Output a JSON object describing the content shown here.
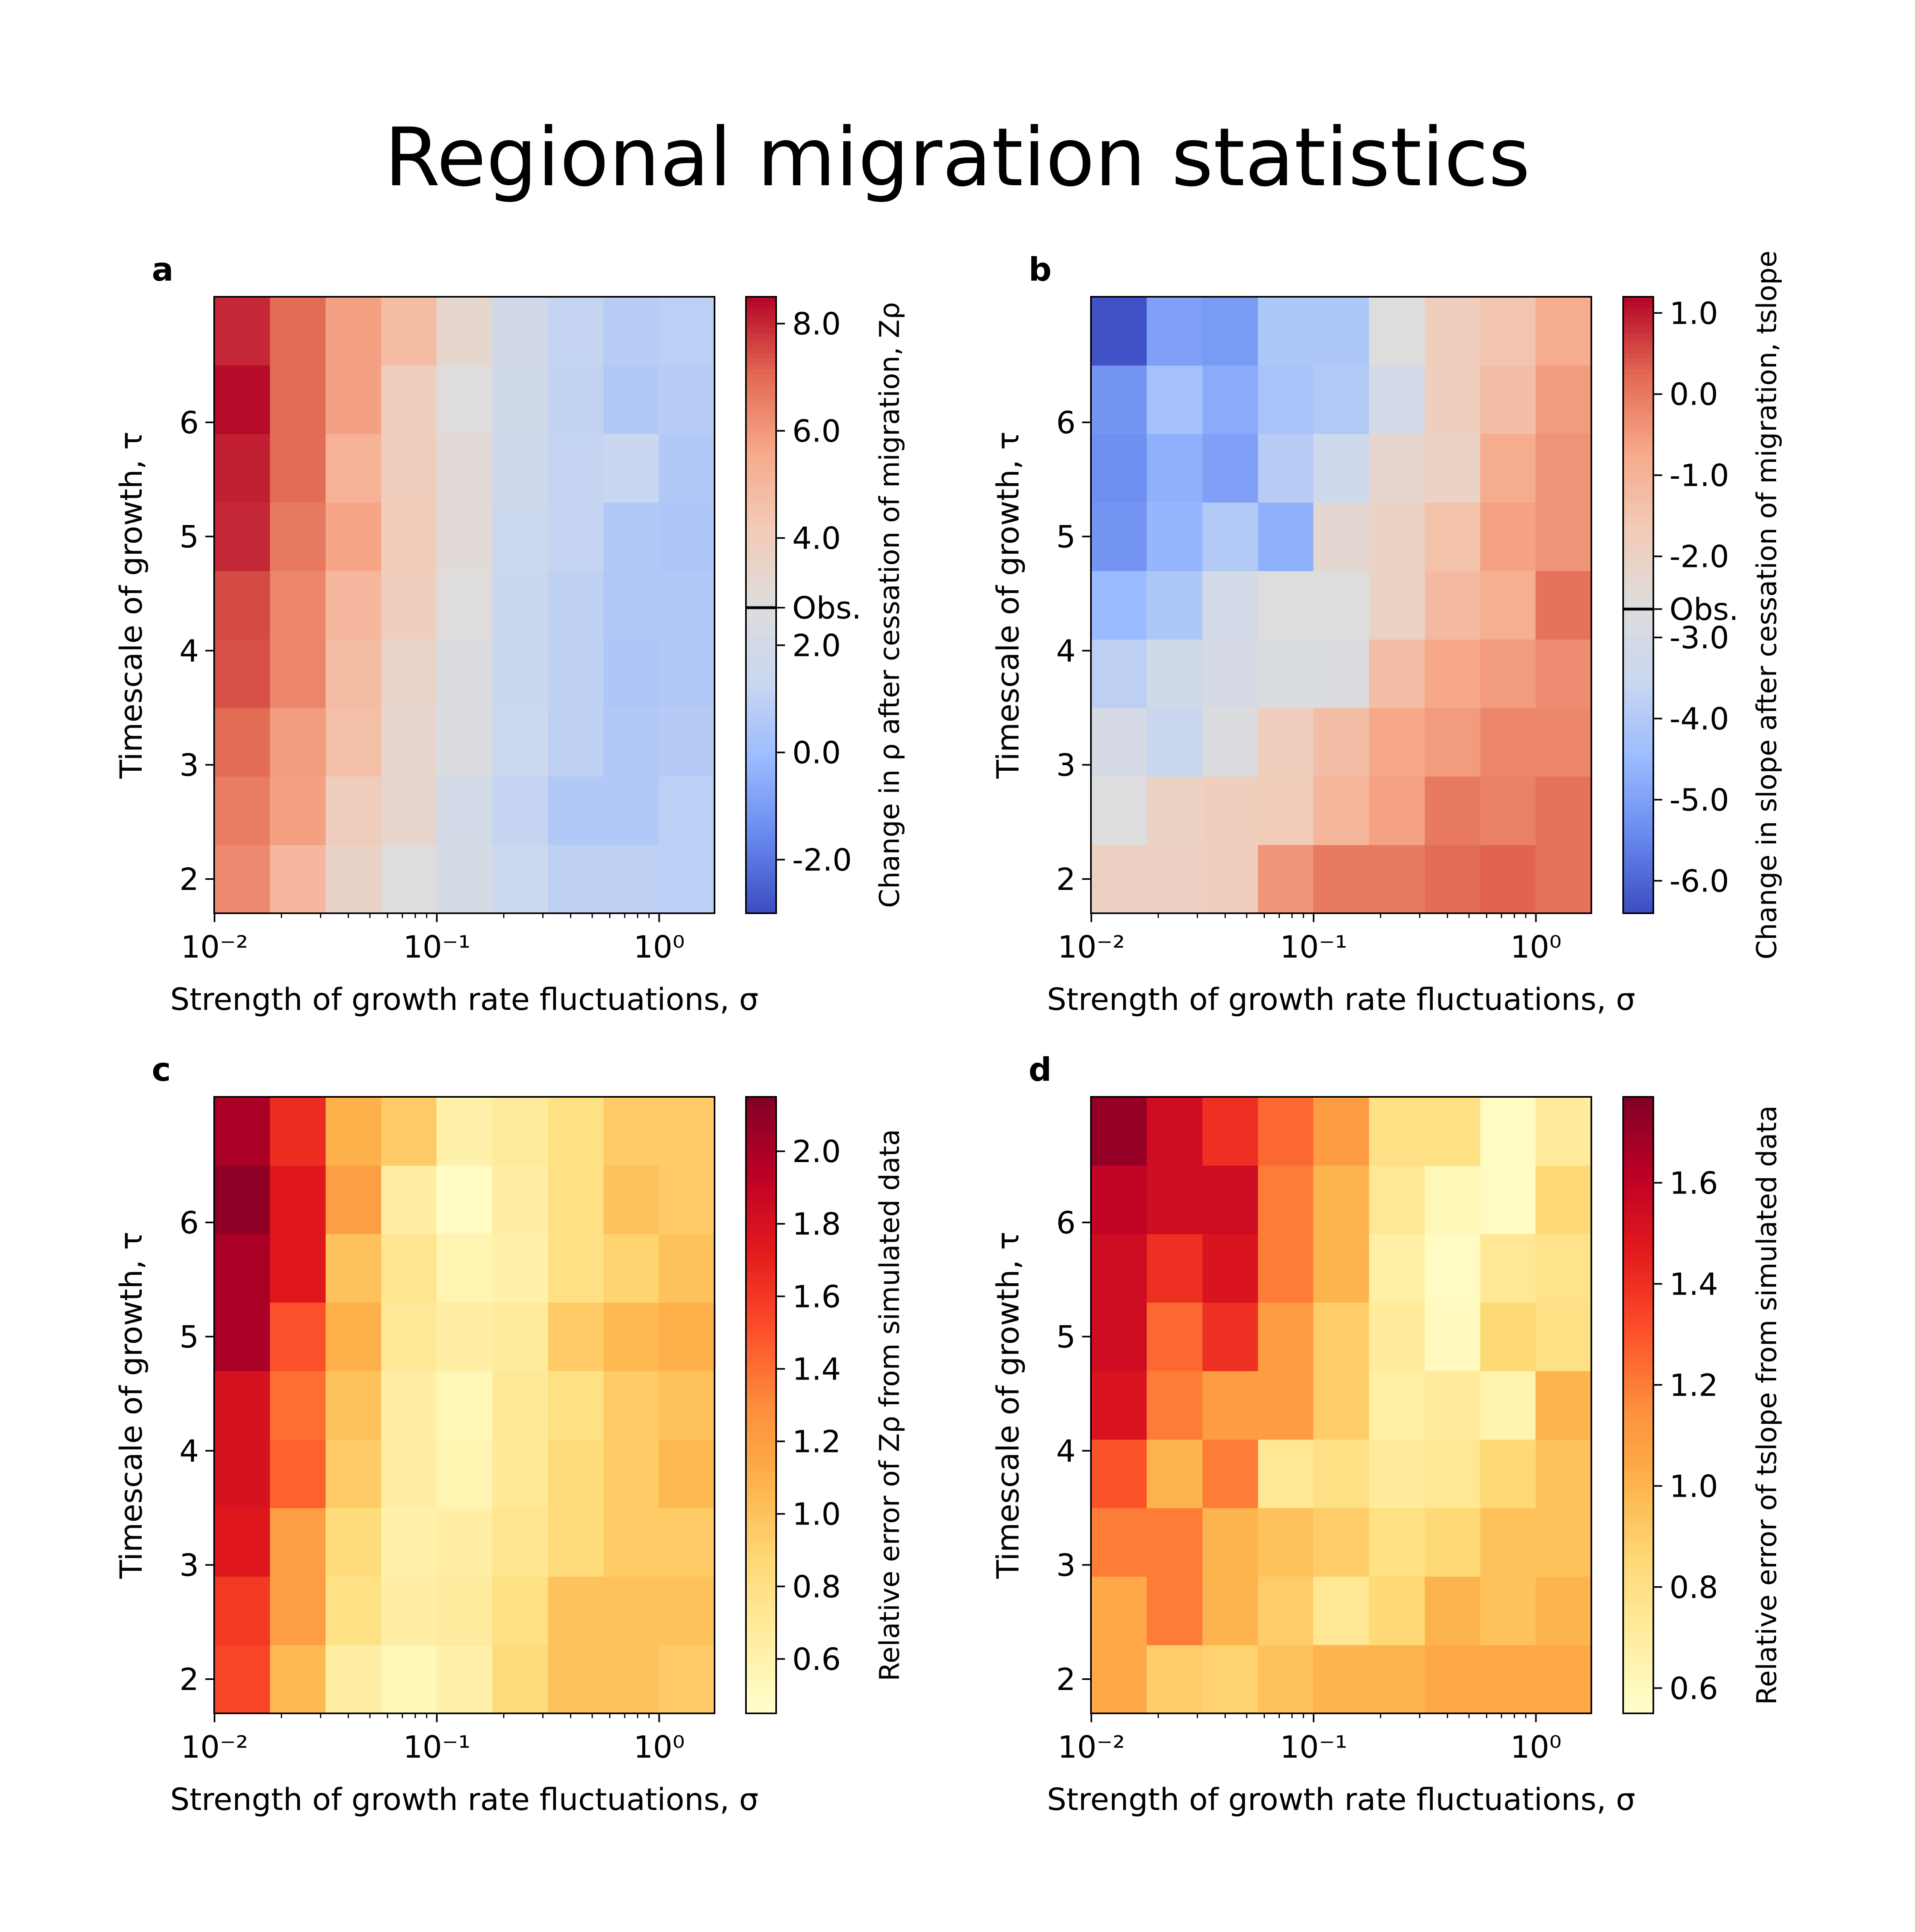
{
  "figure": {
    "title": "Regional migration statistics"
  },
  "colors": {
    "coolwarm": [
      "#3b4cc0",
      "#6788ee",
      "#9abbff",
      "#c9d7f0",
      "#dddddd",
      "#f2cbb7",
      "#f7a889",
      "#e26952",
      "#b40426"
    ],
    "ylorrd": [
      "#ffffcc",
      "#ffeda0",
      "#fed976",
      "#feb24c",
      "#fd8d3c",
      "#fc4e2a",
      "#e31a1c",
      "#bd0026",
      "#800026"
    ]
  },
  "chart_data": [
    {
      "panel": "a",
      "type": "heatmap",
      "xlabel": "Strength of growth rate fluctuations, σ",
      "ylabel": "Timescale of growth, τ",
      "x_scale": "log",
      "x_tick_labels": [
        "10⁻²",
        "10⁻¹",
        "10⁰"
      ],
      "x_tick_values": [
        0.01,
        0.1,
        1
      ],
      "x_centers": [
        0.0133,
        0.0237,
        0.0422,
        0.075,
        0.133,
        0.237,
        0.422,
        0.75,
        1.33
      ],
      "y_tick_labels": [
        "2",
        "3",
        "4",
        "5",
        "6"
      ],
      "y_tick_values": [
        2,
        3,
        4,
        5,
        6
      ],
      "y_centers": [
        2.0,
        2.6,
        3.2,
        3.8,
        4.4,
        5.0,
        5.6,
        6.2,
        6.8
      ],
      "colorbar": {
        "label": "Change in ρ after cessation of migration, Zρ",
        "cmap": "coolwarm",
        "range": [
          -3.0,
          8.5
        ],
        "ticks": [
          -2.0,
          0.0,
          2.0,
          4.0,
          6.0,
          8.0
        ],
        "tick_labels": [
          "-2.0",
          "0.0",
          "2.0",
          "4.0",
          "6.0",
          "8.0"
        ],
        "observed": {
          "label": "Obs.",
          "value": 2.7
        }
      },
      "values": [
        [
          6.3,
          5.0,
          3.6,
          2.8,
          2.2,
          1.5,
          1.0,
          1.0,
          0.9
        ],
        [
          6.6,
          5.8,
          4.0,
          3.4,
          2.0,
          1.2,
          0.6,
          0.6,
          0.9
        ],
        [
          7.0,
          5.9,
          4.7,
          3.4,
          2.5,
          1.5,
          1.0,
          0.6,
          0.7
        ],
        [
          7.4,
          6.4,
          4.8,
          3.5,
          2.5,
          1.4,
          1.0,
          0.5,
          0.6
        ],
        [
          7.5,
          6.4,
          5.0,
          3.9,
          2.8,
          1.4,
          1.0,
          0.6,
          0.6
        ],
        [
          8.0,
          6.7,
          5.7,
          4.1,
          3.0,
          1.5,
          1.2,
          0.6,
          0.5
        ],
        [
          8.1,
          7.0,
          5.2,
          4.0,
          3.0,
          1.7,
          1.2,
          1.3,
          0.6
        ],
        [
          8.4,
          7.0,
          5.8,
          3.9,
          2.8,
          1.8,
          1.1,
          0.6,
          0.8
        ],
        [
          8.0,
          7.0,
          5.8,
          4.8,
          3.3,
          1.9,
          1.2,
          0.8,
          0.9
        ]
      ]
    },
    {
      "panel": "b",
      "type": "heatmap",
      "xlabel": "Strength of growth rate fluctuations, σ",
      "ylabel": "Timescale of growth, τ",
      "x_scale": "log",
      "x_tick_labels": [
        "10⁻²",
        "10⁻¹",
        "10⁰"
      ],
      "x_tick_values": [
        0.01,
        0.1,
        1
      ],
      "x_centers": [
        0.0133,
        0.0237,
        0.0422,
        0.075,
        0.133,
        0.237,
        0.422,
        0.75,
        1.33
      ],
      "y_tick_labels": [
        "2",
        "3",
        "4",
        "5",
        "6"
      ],
      "y_tick_values": [
        2,
        3,
        4,
        5,
        6
      ],
      "y_centers": [
        2.0,
        2.6,
        3.2,
        3.8,
        4.4,
        5.0,
        5.6,
        6.2,
        6.8
      ],
      "colorbar": {
        "label": "Change in slope after cessation of migration, tslope",
        "cmap": "coolwarm",
        "range": [
          -6.4,
          1.2
        ],
        "ticks": [
          -6.0,
          -5.0,
          -4.0,
          -3.0,
          -2.0,
          -1.0,
          0.0,
          1.0
        ],
        "tick_labels": [
          "-6.0",
          "-5.0",
          "-4.0",
          "-3.0",
          "-2.0",
          "-1.0",
          "0.0",
          "1.0"
        ],
        "observed": {
          "label": "Obs.",
          "value": -2.65
        }
      },
      "values": [
        [
          -1.9,
          -1.9,
          -1.8,
          -0.4,
          0.0,
          0.0,
          0.2,
          0.3,
          0.1
        ],
        [
          -2.6,
          -2.0,
          -1.8,
          -1.7,
          -1.1,
          -0.6,
          0.0,
          -0.1,
          0.1
        ],
        [
          -3.0,
          -3.5,
          -2.7,
          -1.8,
          -1.3,
          -0.7,
          -0.5,
          -0.2,
          -0.2
        ],
        [
          -3.8,
          -3.2,
          -3.0,
          -2.8,
          -2.7,
          -1.3,
          -0.7,
          -0.5,
          -0.3
        ],
        [
          -4.5,
          -4.1,
          -3.1,
          -2.6,
          -2.6,
          -2.0,
          -1.2,
          -0.9,
          0.1
        ],
        [
          -5.2,
          -4.6,
          -4.0,
          -4.7,
          -2.3,
          -2.0,
          -1.4,
          -0.6,
          -0.4
        ],
        [
          -5.3,
          -4.7,
          -5.0,
          -3.9,
          -3.3,
          -2.2,
          -2.0,
          -0.8,
          -0.4
        ],
        [
          -5.2,
          -4.3,
          -4.8,
          -4.2,
          -4.0,
          -3.1,
          -1.8,
          -1.3,
          -0.5
        ],
        [
          -6.3,
          -5.0,
          -5.1,
          -4.1,
          -4.1,
          -2.6,
          -1.8,
          -1.5,
          -0.8
        ]
      ]
    },
    {
      "panel": "c",
      "type": "heatmap",
      "xlabel": "Strength of growth rate fluctuations, σ",
      "ylabel": "Timescale of growth, τ",
      "x_scale": "log",
      "x_tick_labels": [
        "10⁻²",
        "10⁻¹",
        "10⁰"
      ],
      "x_tick_values": [
        0.01,
        0.1,
        1
      ],
      "x_centers": [
        0.0133,
        0.0237,
        0.0422,
        0.075,
        0.133,
        0.237,
        0.422,
        0.75,
        1.33
      ],
      "y_tick_labels": [
        "2",
        "3",
        "4",
        "5",
        "6"
      ],
      "y_tick_values": [
        2,
        3,
        4,
        5,
        6
      ],
      "y_centers": [
        2.0,
        2.6,
        3.2,
        3.8,
        4.4,
        5.0,
        5.6,
        6.2,
        6.8
      ],
      "colorbar": {
        "label": "Relative error of Zρ from simulated data",
        "cmap": "ylorrd",
        "range": [
          0.45,
          2.15
        ],
        "ticks": [
          0.6,
          0.8,
          1.0,
          1.2,
          1.4,
          1.6,
          1.8,
          2.0
        ],
        "tick_labels": [
          "0.6",
          "0.8",
          "1.0",
          "1.2",
          "1.4",
          "1.6",
          "1.8",
          "2.0"
        ]
      },
      "values": [
        [
          1.55,
          1.05,
          0.65,
          0.55,
          0.62,
          0.85,
          1.0,
          1.0,
          0.95
        ],
        [
          1.6,
          1.2,
          0.8,
          0.65,
          0.68,
          0.8,
          1.0,
          1.0,
          1.0
        ],
        [
          1.75,
          1.2,
          0.85,
          0.62,
          0.65,
          0.75,
          0.85,
          0.95,
          0.95
        ],
        [
          1.8,
          1.45,
          0.95,
          0.65,
          0.58,
          0.7,
          0.85,
          0.95,
          1.05
        ],
        [
          1.8,
          1.4,
          1.0,
          0.65,
          0.55,
          0.7,
          0.8,
          0.95,
          1.0
        ],
        [
          2.0,
          1.5,
          1.1,
          0.7,
          0.65,
          0.68,
          0.95,
          1.05,
          1.1
        ],
        [
          2.0,
          1.75,
          1.0,
          0.75,
          0.58,
          0.62,
          0.8,
          0.9,
          1.0
        ],
        [
          2.1,
          1.75,
          1.2,
          0.65,
          0.5,
          0.65,
          0.8,
          1.0,
          0.95
        ],
        [
          2.0,
          1.65,
          1.1,
          0.95,
          0.62,
          0.68,
          0.8,
          0.95,
          0.95
        ]
      ]
    },
    {
      "panel": "d",
      "type": "heatmap",
      "xlabel": "Strength of growth rate fluctuations, σ",
      "ylabel": "Timescale of growth, τ",
      "x_scale": "log",
      "x_tick_labels": [
        "10⁻²",
        "10⁻¹",
        "10⁰"
      ],
      "x_tick_values": [
        0.01,
        0.1,
        1
      ],
      "x_centers": [
        0.0133,
        0.0237,
        0.0422,
        0.075,
        0.133,
        0.237,
        0.422,
        0.75,
        1.33
      ],
      "y_tick_labels": [
        "2",
        "3",
        "4",
        "5",
        "6"
      ],
      "y_tick_values": [
        2,
        3,
        4,
        5,
        6
      ],
      "y_centers": [
        2.0,
        2.6,
        3.2,
        3.8,
        4.4,
        5.0,
        5.6,
        6.2,
        6.8
      ],
      "colorbar": {
        "label": "Relative error of tslope from simulated data",
        "cmap": "ylorrd",
        "range": [
          0.55,
          1.77
        ],
        "ticks": [
          0.6,
          0.8,
          1.0,
          1.2,
          1.4,
          1.6
        ],
        "tick_labels": [
          "0.6",
          "0.8",
          "1.0",
          "1.2",
          "1.4",
          "1.6"
        ]
      },
      "values": [
        [
          1.05,
          0.9,
          0.88,
          0.95,
          1.0,
          1.0,
          1.05,
          1.05,
          1.05
        ],
        [
          1.05,
          1.2,
          1.0,
          0.9,
          0.75,
          0.85,
          1.0,
          0.95,
          1.0
        ],
        [
          1.2,
          1.2,
          1.0,
          0.95,
          0.9,
          0.8,
          0.85,
          0.95,
          0.95
        ],
        [
          1.3,
          1.0,
          1.2,
          0.75,
          0.8,
          0.72,
          0.75,
          0.85,
          0.95
        ],
        [
          1.5,
          1.2,
          1.1,
          1.1,
          0.9,
          0.68,
          0.72,
          0.65,
          1.0
        ],
        [
          1.55,
          1.25,
          1.4,
          1.1,
          0.9,
          0.72,
          0.6,
          0.85,
          0.8
        ],
        [
          1.55,
          1.4,
          1.5,
          1.2,
          1.0,
          0.68,
          0.58,
          0.75,
          0.78
        ],
        [
          1.6,
          1.55,
          1.55,
          1.2,
          1.0,
          0.75,
          0.62,
          0.58,
          0.85
        ],
        [
          1.72,
          1.55,
          1.4,
          1.25,
          1.1,
          0.8,
          0.8,
          0.58,
          0.72
        ]
      ]
    }
  ]
}
